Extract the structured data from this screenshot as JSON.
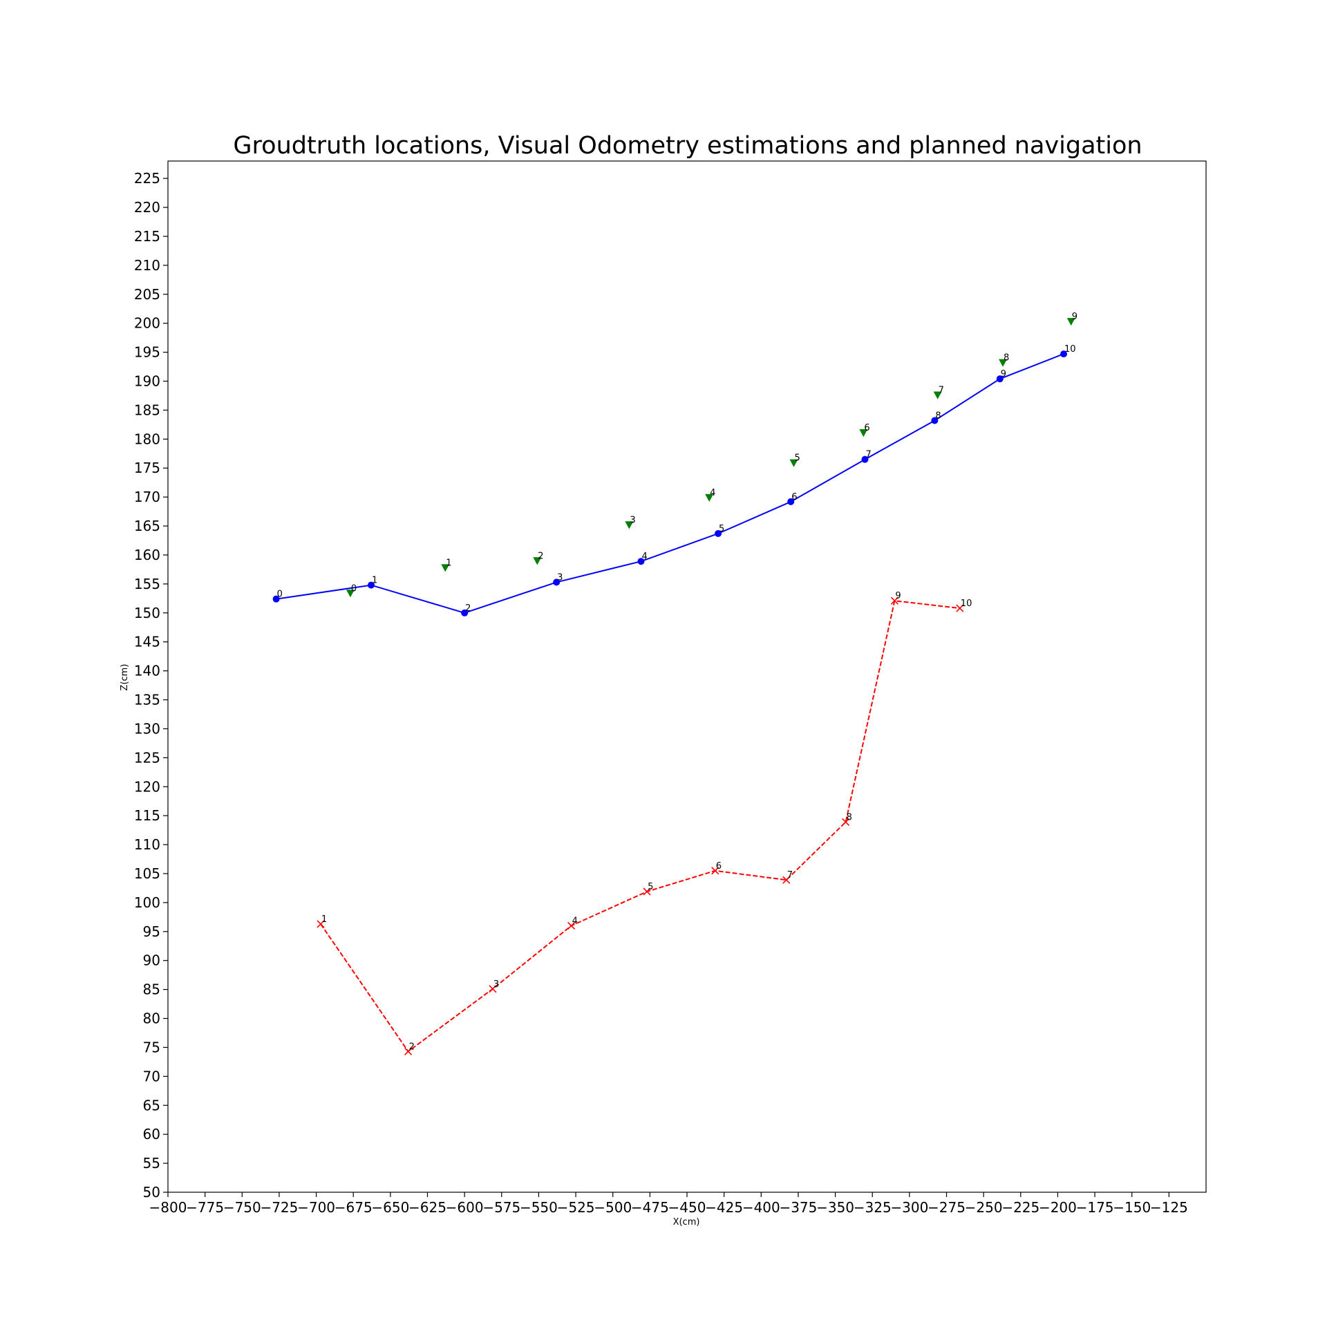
{
  "chart_data": {
    "type": "line",
    "title": "Groudtruth locations, Visual Odometry estimations and planned navigation",
    "xlabel": "X(cm)",
    "ylabel": "Z(cm)",
    "xlim": [
      -800,
      -100
    ],
    "ylim": [
      50,
      228
    ],
    "x_ticks": [
      -800,
      -775,
      -750,
      -725,
      -700,
      -675,
      -650,
      -625,
      -600,
      -575,
      -550,
      -525,
      -500,
      -475,
      -450,
      -425,
      -400,
      -375,
      -350,
      -325,
      -300,
      -275,
      -250,
      -225,
      -200,
      -175,
      -150,
      -125
    ],
    "y_ticks": [
      50,
      55,
      60,
      65,
      70,
      75,
      80,
      85,
      90,
      95,
      100,
      105,
      110,
      115,
      120,
      125,
      130,
      135,
      140,
      145,
      150,
      155,
      160,
      165,
      170,
      175,
      180,
      185,
      190,
      195,
      200,
      205,
      210,
      215,
      220,
      225
    ],
    "grid": false,
    "series": [
      {
        "color": "#0000ff",
        "line_style": "solid",
        "marker": "circle",
        "points": [
          {
            "x": -727,
            "y": 152.4,
            "label": "0"
          },
          {
            "x": -663,
            "y": 154.8,
            "label": "1"
          },
          {
            "x": -600,
            "y": 150.0,
            "label": "2"
          },
          {
            "x": -538,
            "y": 155.3,
            "label": "3"
          },
          {
            "x": -481,
            "y": 158.9,
            "label": "4"
          },
          {
            "x": -429,
            "y": 163.7,
            "label": "5"
          },
          {
            "x": -380,
            "y": 169.2,
            "label": "6"
          },
          {
            "x": -330,
            "y": 176.5,
            "label": "7"
          },
          {
            "x": -283,
            "y": 183.2,
            "label": "8"
          },
          {
            "x": -239,
            "y": 190.4,
            "label": "9"
          },
          {
            "x": -196,
            "y": 194.7,
            "label": "10"
          }
        ]
      },
      {
        "color": "#008000",
        "line_style": "none",
        "marker": "triangle-down",
        "points": [
          {
            "x": -677,
            "y": 153.4,
            "label": "0"
          },
          {
            "x": -613,
            "y": 157.8,
            "label": "1"
          },
          {
            "x": -551,
            "y": 159.0,
            "label": "2"
          },
          {
            "x": -489,
            "y": 165.2,
            "label": "3"
          },
          {
            "x": -435,
            "y": 169.9,
            "label": "4"
          },
          {
            "x": -378,
            "y": 175.9,
            "label": "5"
          },
          {
            "x": -331,
            "y": 181.1,
            "label": "6"
          },
          {
            "x": -281,
            "y": 187.6,
            "label": "7"
          },
          {
            "x": -237,
            "y": 193.2,
            "label": "8"
          },
          {
            "x": -191,
            "y": 200.3,
            "label": "9"
          }
        ]
      },
      {
        "color": "#ff0000",
        "line_style": "dashed",
        "marker": "x",
        "points": [
          {
            "x": -697,
            "y": 96.3,
            "label": "1"
          },
          {
            "x": -638,
            "y": 74.3,
            "label": "2"
          },
          {
            "x": -581,
            "y": 85.1,
            "label": "3"
          },
          {
            "x": -528,
            "y": 96.0,
            "label": "4"
          },
          {
            "x": -477,
            "y": 101.9,
            "label": "5"
          },
          {
            "x": -431,
            "y": 105.5,
            "label": "6"
          },
          {
            "x": -383,
            "y": 103.9,
            "label": "7"
          },
          {
            "x": -343,
            "y": 113.9,
            "label": "8"
          },
          {
            "x": -310,
            "y": 152.1,
            "label": "9"
          },
          {
            "x": -266,
            "y": 150.8,
            "label": "10"
          }
        ]
      }
    ]
  }
}
